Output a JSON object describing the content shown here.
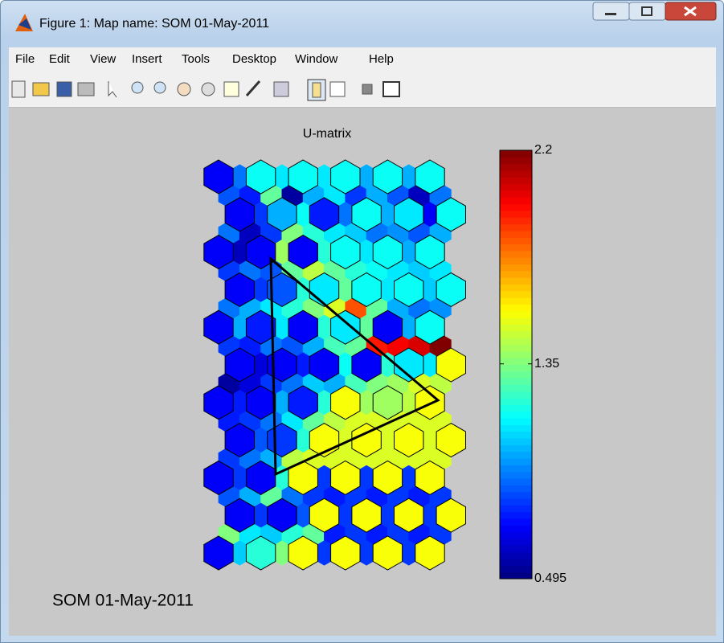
{
  "window": {
    "title": "Figure 1: Map name: SOM 01-May-2011"
  },
  "menu": [
    "File",
    "Edit",
    "View",
    "Insert",
    "Tools",
    "Desktop",
    "Window",
    "Help"
  ],
  "chart_data": {
    "type": "hexmap",
    "title": "U-matrix",
    "caption": "SOM 01-May-2011",
    "clim": [
      0.495,
      2.2
    ],
    "cticks": [
      0.495,
      1.35,
      2.2
    ],
    "umatrix": [
      [
        0.7,
        0.9,
        1.15,
        1.1,
        1.15,
        1.1,
        1.15,
        1.0,
        1.15,
        1.0,
        1.15
      ],
      [
        0.85,
        0.75,
        1.3,
        0.55,
        1.0,
        1.1,
        0.8,
        1.0,
        0.85,
        0.6,
        0.9
      ],
      [
        0.7,
        0.8,
        1.0,
        1.15,
        0.75,
        0.9,
        1.15,
        1.0,
        1.1,
        0.7,
        1.15
      ],
      [
        0.9,
        0.6,
        0.8,
        1.35,
        1.2,
        1.1,
        1.05,
        0.9,
        0.95,
        0.85,
        1.0
      ],
      [
        0.7,
        0.6,
        0.7,
        1.4,
        0.7,
        1.2,
        1.15,
        1.1,
        1.15,
        1.0,
        1.15
      ],
      [
        0.8,
        0.9,
        0.85,
        1.3,
        1.45,
        1.3,
        1.2,
        1.15,
        1.1,
        1.05,
        1.1
      ],
      [
        0.7,
        0.8,
        0.85,
        1.2,
        1.1,
        1.3,
        1.15,
        1.1,
        1.15,
        1.05,
        1.15
      ],
      [
        0.9,
        1.0,
        1.1,
        1.2,
        1.35,
        1.5,
        1.85,
        1.3,
        1.0,
        0.9,
        0.95
      ],
      [
        0.7,
        1.0,
        0.75,
        1.1,
        0.7,
        1.2,
        1.1,
        1.3,
        0.7,
        1.0,
        1.15
      ],
      [
        0.8,
        0.75,
        0.9,
        0.85,
        1.0,
        1.25,
        1.3,
        1.95,
        2.0,
        2.05,
        2.2
      ],
      [
        0.7,
        0.65,
        0.7,
        0.75,
        0.7,
        1.15,
        0.7,
        1.2,
        1.1,
        1.1,
        1.55
      ],
      [
        0.55,
        0.65,
        0.8,
        0.9,
        1.05,
        1.0,
        1.25,
        1.35,
        1.4,
        1.5,
        1.45
      ],
      [
        0.7,
        0.75,
        0.7,
        1.0,
        0.75,
        1.2,
        1.55,
        1.4,
        1.4,
        1.45,
        1.55
      ],
      [
        0.75,
        0.8,
        0.9,
        1.1,
        1.3,
        1.45,
        1.5,
        1.5,
        1.5,
        1.5,
        1.5
      ],
      [
        0.7,
        0.85,
        0.8,
        1.2,
        1.55,
        1.5,
        1.55,
        1.5,
        1.55,
        1.5,
        1.55
      ],
      [
        0.8,
        0.9,
        1.0,
        1.45,
        1.5,
        1.5,
        1.5,
        1.5,
        1.5,
        1.5,
        1.5
      ],
      [
        0.7,
        0.8,
        0.7,
        1.2,
        1.55,
        0.8,
        1.55,
        0.8,
        1.55,
        0.8,
        1.55
      ],
      [
        0.85,
        1.0,
        1.3,
        0.9,
        0.8,
        0.75,
        0.8,
        0.75,
        0.8,
        0.75,
        0.8
      ],
      [
        0.7,
        0.8,
        0.7,
        0.85,
        1.55,
        0.8,
        1.55,
        0.8,
        1.55,
        0.8,
        1.55
      ],
      [
        1.35,
        1.1,
        1.05,
        1.2,
        1.3,
        0.75,
        0.8,
        0.75,
        0.8,
        0.75,
        0.8
      ],
      [
        0.7,
        1.05,
        1.2,
        1.35,
        1.55,
        0.8,
        1.55,
        0.8,
        1.55,
        0.8,
        1.55
      ]
    ]
  }
}
